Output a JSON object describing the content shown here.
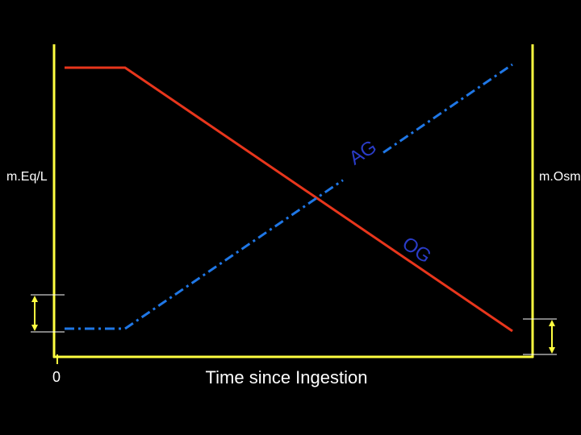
{
  "labels": {
    "left_axis": "m.Eq/L",
    "right_axis": "m.Osm",
    "origin": "0",
    "x_axis": "Time since Ingestion",
    "ag": "AG",
    "og": "OG"
  }
}
